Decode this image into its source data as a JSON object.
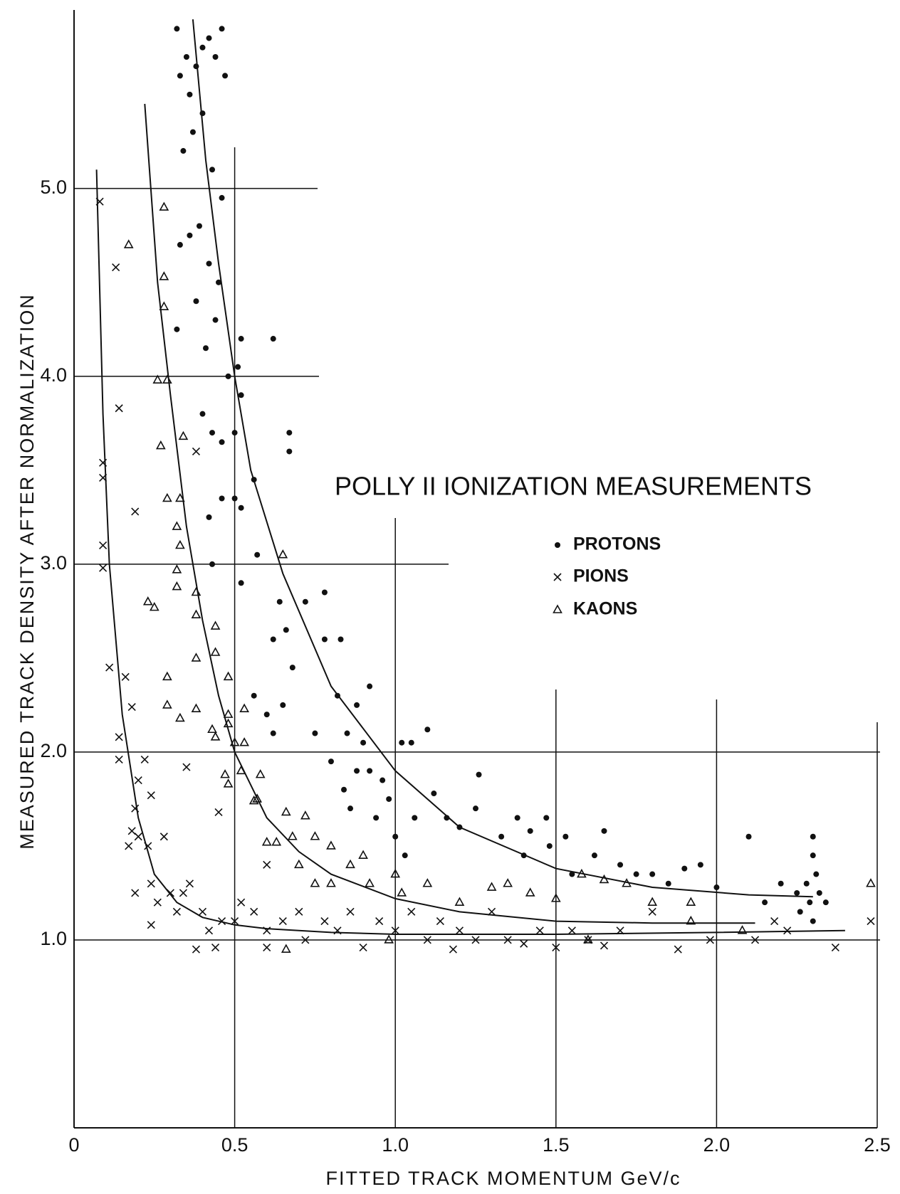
{
  "chart_data": {
    "type": "scatter",
    "title": "POLLY II IONIZATION MEASUREMENTS",
    "xlabel": "FITTED TRACK MOMENTUM GeV/c",
    "ylabel": "MEASURED TRACK DENSITY AFTER NORMALIZATION",
    "xlim": [
      0,
      2.5
    ],
    "ylim": [
      0,
      5.95
    ],
    "xticks": [
      0,
      0.5,
      {
        "value": 1,
        "label": "1.0"
      },
      1.5,
      {
        "value": 2,
        "label": "2.0"
      },
      2.5
    ],
    "yticks": [
      {
        "value": 1,
        "label": "1.0"
      },
      {
        "value": 2,
        "label": "2.0"
      },
      {
        "value": 3,
        "label": "3.0"
      },
      {
        "value": 4,
        "label": "4.0"
      },
      {
        "value": 5,
        "label": "5.0"
      }
    ],
    "grid": true,
    "series": [
      {
        "name": "PROTONS",
        "color": "#111111",
        "marker": "dot",
        "x": [
          0.32,
          0.33,
          0.35,
          0.36,
          0.38,
          0.4,
          0.42,
          0.44,
          0.46,
          0.47,
          0.34,
          0.37,
          0.4,
          0.43,
          0.46,
          0.33,
          0.36,
          0.39,
          0.42,
          0.45,
          0.32,
          0.38,
          0.41,
          0.44,
          0.48,
          0.4,
          0.43,
          0.46,
          0.51,
          0.52,
          0.52,
          0.62,
          0.5,
          0.42,
          0.46,
          0.5,
          0.52,
          0.67,
          0.67,
          0.56,
          0.43,
          0.52,
          0.57,
          0.64,
          0.66,
          0.72,
          0.78,
          0.62,
          0.68,
          0.78,
          0.83,
          0.56,
          0.6,
          0.65,
          0.75,
          0.62,
          0.82,
          0.88,
          0.92,
          0.85,
          0.9,
          0.8,
          0.84,
          0.88,
          0.92,
          0.96,
          0.98,
          1.02,
          1.05,
          1.1,
          0.86,
          0.94,
          1.0,
          1.03,
          1.06,
          1.12,
          1.16,
          1.2,
          1.26,
          1.25,
          1.33,
          1.38,
          1.42,
          1.47,
          1.4,
          1.48,
          1.53,
          1.55,
          1.62,
          1.65,
          1.7,
          1.75,
          1.8,
          1.85,
          1.9,
          1.95,
          2.0,
          2.1,
          2.15,
          2.2,
          2.25,
          2.28,
          2.3,
          2.3,
          2.31,
          2.32,
          2.29,
          2.3,
          2.34,
          2.26
        ],
        "values": [
          5.85,
          5.6,
          5.7,
          5.5,
          5.65,
          5.75,
          5.8,
          5.7,
          5.85,
          5.6,
          5.2,
          5.3,
          5.4,
          5.1,
          4.95,
          4.7,
          4.75,
          4.8,
          4.6,
          4.5,
          4.25,
          4.4,
          4.15,
          4.3,
          4.0,
          3.8,
          3.7,
          3.65,
          4.05,
          3.9,
          4.2,
          4.2,
          3.7,
          3.25,
          3.35,
          3.35,
          3.3,
          3.7,
          3.6,
          3.45,
          3.0,
          2.9,
          3.05,
          2.8,
          2.65,
          2.8,
          2.85,
          2.6,
          2.45,
          2.6,
          2.6,
          2.3,
          2.2,
          2.25,
          2.1,
          2.1,
          2.3,
          2.25,
          2.35,
          2.1,
          2.05,
          1.95,
          1.8,
          1.9,
          1.9,
          1.85,
          1.75,
          2.05,
          2.05,
          2.12,
          1.7,
          1.65,
          1.55,
          1.45,
          1.65,
          1.78,
          1.65,
          1.6,
          1.88,
          1.7,
          1.55,
          1.65,
          1.58,
          1.65,
          1.45,
          1.5,
          1.55,
          1.35,
          1.45,
          1.58,
          1.4,
          1.35,
          1.35,
          1.3,
          1.38,
          1.4,
          1.28,
          1.55,
          1.2,
          1.3,
          1.25,
          1.3,
          1.55,
          1.45,
          1.35,
          1.25,
          1.2,
          1.1,
          1.2,
          1.15
        ]
      },
      {
        "name": "PIONS",
        "color": "#111111",
        "marker": "cross",
        "x": [
          0.08,
          0.13,
          0.14,
          0.09,
          0.09,
          0.09,
          0.09,
          0.19,
          0.38,
          0.11,
          0.16,
          0.18,
          0.14,
          0.14,
          0.22,
          0.24,
          0.35,
          0.2,
          0.19,
          0.18,
          0.17,
          0.2,
          0.23,
          0.28,
          0.19,
          0.24,
          0.26,
          0.24,
          0.3,
          0.34,
          0.32,
          0.36,
          0.4,
          0.38,
          0.44,
          0.42,
          0.46,
          0.5,
          0.52,
          0.56,
          0.6,
          0.6,
          0.65,
          0.7,
          0.72,
          0.78,
          0.82,
          0.86,
          0.9,
          0.95,
          1.0,
          1.05,
          1.1,
          1.14,
          1.18,
          1.2,
          1.25,
          1.3,
          1.35,
          1.4,
          1.45,
          1.5,
          1.55,
          1.6,
          1.65,
          1.7,
          1.8,
          1.88,
          1.98,
          2.12,
          2.18,
          2.22,
          2.37,
          2.48,
          0.45,
          0.6
        ],
        "values": [
          4.93,
          4.58,
          3.83,
          3.54,
          3.46,
          3.1,
          2.98,
          3.28,
          3.6,
          2.45,
          2.4,
          2.24,
          2.08,
          1.96,
          1.96,
          1.77,
          1.92,
          1.85,
          1.7,
          1.58,
          1.5,
          1.55,
          1.5,
          1.55,
          1.25,
          1.3,
          1.2,
          1.08,
          1.25,
          1.25,
          1.15,
          1.3,
          1.15,
          0.95,
          0.96,
          1.05,
          1.1,
          1.1,
          1.2,
          1.15,
          1.05,
          0.96,
          1.1,
          1.15,
          1.0,
          1.1,
          1.05,
          1.15,
          0.96,
          1.1,
          1.05,
          1.15,
          1.0,
          1.1,
          0.95,
          1.05,
          1.0,
          1.15,
          1.0,
          0.98,
          1.05,
          0.96,
          1.05,
          1.0,
          0.97,
          1.05,
          1.15,
          0.95,
          1.0,
          1.0,
          1.1,
          1.05,
          0.96,
          1.1,
          1.68,
          1.4
        ]
      },
      {
        "name": "KAONS",
        "color": "#111111",
        "marker": "triangle",
        "x": [
          0.28,
          0.17,
          0.28,
          0.28,
          0.26,
          0.29,
          0.34,
          0.27,
          0.29,
          0.33,
          0.32,
          0.33,
          0.32,
          0.32,
          0.38,
          0.25,
          0.23,
          0.44,
          0.38,
          0.44,
          0.38,
          0.29,
          0.48,
          0.29,
          0.38,
          0.33,
          0.43,
          0.44,
          0.48,
          0.48,
          0.53,
          0.5,
          0.53,
          0.47,
          0.48,
          0.52,
          0.58,
          0.56,
          0.57,
          0.6,
          0.63,
          0.66,
          0.72,
          0.68,
          0.75,
          0.8,
          0.86,
          0.7,
          0.75,
          0.8,
          0.9,
          0.92,
          1.0,
          1.02,
          1.1,
          1.2,
          1.3,
          1.35,
          1.42,
          1.5,
          1.58,
          1.65,
          1.72,
          1.8,
          1.92,
          1.92,
          2.08,
          2.48,
          0.66,
          0.98,
          1.6,
          0.65
        ],
        "values": [
          4.9,
          4.7,
          4.53,
          4.37,
          3.98,
          3.98,
          3.68,
          3.63,
          3.35,
          3.35,
          3.2,
          3.1,
          2.97,
          2.88,
          2.85,
          2.77,
          2.8,
          2.67,
          2.73,
          2.53,
          2.5,
          2.4,
          2.4,
          2.25,
          2.23,
          2.18,
          2.12,
          2.08,
          2.2,
          2.15,
          2.23,
          2.05,
          2.05,
          1.88,
          1.83,
          1.9,
          1.88,
          1.74,
          1.75,
          1.52,
          1.52,
          1.68,
          1.66,
          1.55,
          1.55,
          1.5,
          1.4,
          1.4,
          1.3,
          1.3,
          1.45,
          1.3,
          1.35,
          1.25,
          1.3,
          1.2,
          1.28,
          1.3,
          1.25,
          1.22,
          1.35,
          1.32,
          1.3,
          1.2,
          1.2,
          1.1,
          1.05,
          1.3,
          0.95,
          1.0,
          1.0,
          3.05
        ]
      }
    ],
    "curves": [
      {
        "x": [
          0.07,
          0.09,
          0.11,
          0.15,
          0.2,
          0.25,
          0.32,
          0.4,
          0.5,
          0.6,
          0.8,
          1.0,
          1.5,
          2.0,
          2.4
        ],
        "values": [
          5.1,
          3.8,
          3.0,
          2.2,
          1.65,
          1.35,
          1.2,
          1.12,
          1.08,
          1.06,
          1.04,
          1.03,
          1.03,
          1.04,
          1.05
        ]
      },
      {
        "x": [
          0.22,
          0.26,
          0.3,
          0.35,
          0.4,
          0.45,
          0.5,
          0.6,
          0.7,
          0.8,
          1.0,
          1.2,
          1.5,
          1.8,
          2.12
        ],
        "values": [
          5.45,
          4.5,
          3.9,
          3.2,
          2.7,
          2.3,
          2.0,
          1.65,
          1.47,
          1.35,
          1.22,
          1.15,
          1.1,
          1.09,
          1.09
        ]
      },
      {
        "x": [
          0.37,
          0.41,
          0.45,
          0.5,
          0.55,
          0.65,
          0.8,
          1.0,
          1.2,
          1.5,
          1.8,
          2.1,
          2.3
        ],
        "values": [
          5.9,
          5.15,
          4.6,
          4.0,
          3.5,
          2.95,
          2.35,
          1.9,
          1.6,
          1.38,
          1.28,
          1.24,
          1.23
        ]
      }
    ]
  }
}
